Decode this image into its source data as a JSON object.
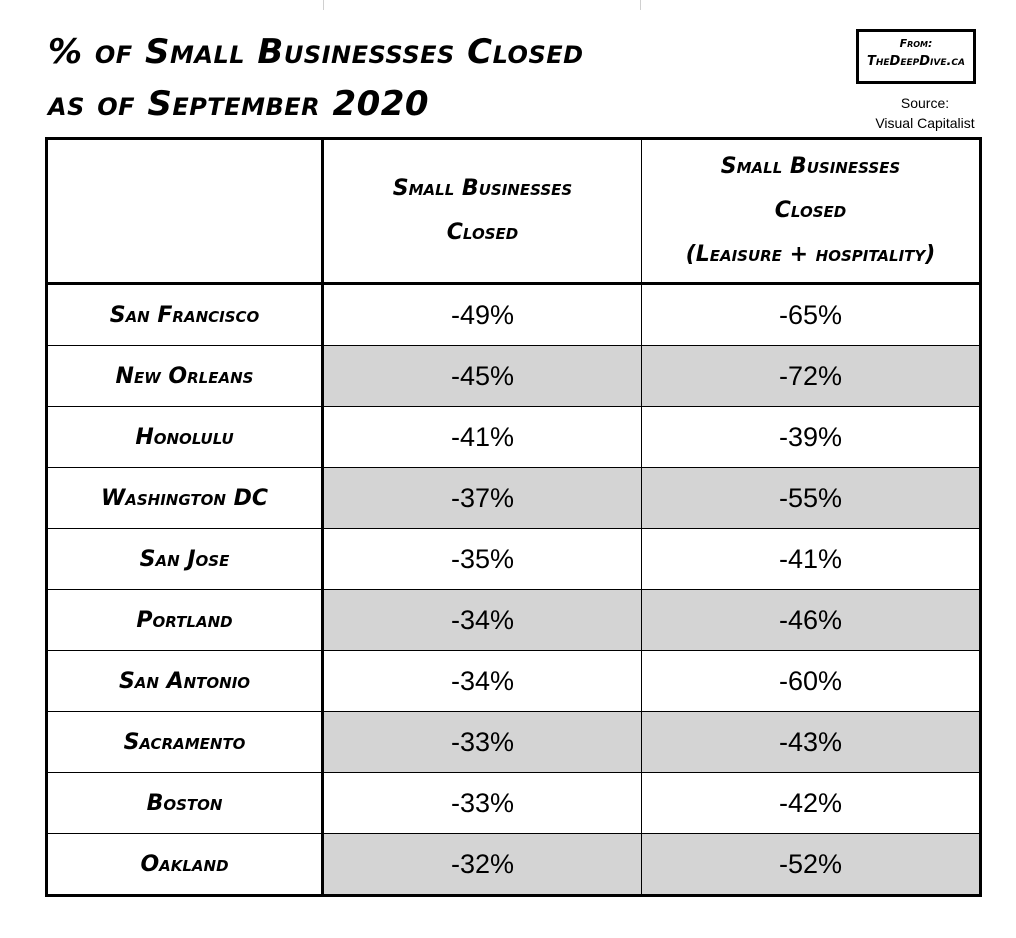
{
  "header": {
    "title_line1": "% of Small Businessses Closed",
    "title_line2": "as of September 2020",
    "from_label": "From:",
    "from_site": "TheDeepDive.ca",
    "source_label": "Source:",
    "source_name": "Visual Capitalist"
  },
  "colors": {
    "shaded_row": "#d4d4d4",
    "border": "#000000"
  },
  "chart_data": {
    "type": "table",
    "columns": [
      "",
      "Small Businesses Closed",
      "Small Businesses Closed (Leaisure + hospitality)"
    ],
    "column_headers": {
      "c2": [
        "Small Businesses",
        "Closed"
      ],
      "c3": [
        "Small Businesses",
        "Closed",
        "(Leaisure + hospitality)"
      ]
    },
    "rows": [
      {
        "city": "San Francisco",
        "closed": "-49%",
        "leisure": "-65%",
        "shaded": false
      },
      {
        "city": "New Orleans",
        "closed": "-45%",
        "leisure": "-72%",
        "shaded": true
      },
      {
        "city": "Honolulu",
        "closed": "-41%",
        "leisure": "-39%",
        "shaded": false
      },
      {
        "city": "Washington DC",
        "closed": "-37%",
        "leisure": "-55%",
        "shaded": true
      },
      {
        "city": "San Jose",
        "closed": "-35%",
        "leisure": "-41%",
        "shaded": false
      },
      {
        "city": "Portland",
        "closed": "-34%",
        "leisure": "-46%",
        "shaded": true
      },
      {
        "city": "San Antonio",
        "closed": "-34%",
        "leisure": "-60%",
        "shaded": false
      },
      {
        "city": "Sacramento",
        "closed": "-33%",
        "leisure": "-43%",
        "shaded": true
      },
      {
        "city": "Boston",
        "closed": "-33%",
        "leisure": "-42%",
        "shaded": false
      },
      {
        "city": "Oakland",
        "closed": "-32%",
        "leisure": "-52%",
        "shaded": true
      }
    ]
  }
}
